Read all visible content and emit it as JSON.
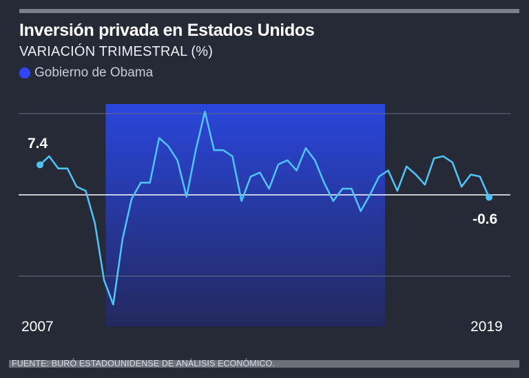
{
  "chart_data": {
    "type": "line",
    "title": "Inversión privada en Estados Unidos",
    "subtitle": "VARIACIÓN TRIMESTRAL (%)",
    "legend": [
      {
        "label": "Gobierno de Obama",
        "color": "#3344ff"
      }
    ],
    "source": "FUENTE: BURÓ ESTADOUNIDENSE DE ANÁLISIS ECONÓMICO.",
    "x_tick_labels": [
      "2007",
      "2019"
    ],
    "ylim": [
      -21,
      21
    ],
    "gridlines": [
      -20,
      0,
      20
    ],
    "highlight_index_range": [
      8,
      36
    ],
    "start_label": "7.4",
    "end_label": "-0.6",
    "series": [
      {
        "name": "Inversión privada",
        "color": "#4fc3f7",
        "values": [
          7.4,
          9.5,
          6.5,
          6.5,
          2.0,
          1.0,
          -7.0,
          -21.0,
          -27.0,
          -11.0,
          -1.0,
          3.0,
          3.0,
          14.0,
          12.0,
          8.5,
          -0.5,
          11.0,
          20.5,
          11.0,
          11.0,
          9.5,
          -1.5,
          4.5,
          5.5,
          1.5,
          7.5,
          8.5,
          6.0,
          11.5,
          8.5,
          3.0,
          -1.5,
          1.5,
          1.5,
          -4.0,
          0.0,
          4.5,
          6.0,
          1.0,
          7.0,
          5.0,
          2.5,
          9.0,
          9.5,
          8.0,
          2.0,
          5.0,
          4.5,
          -0.6
        ]
      }
    ]
  }
}
